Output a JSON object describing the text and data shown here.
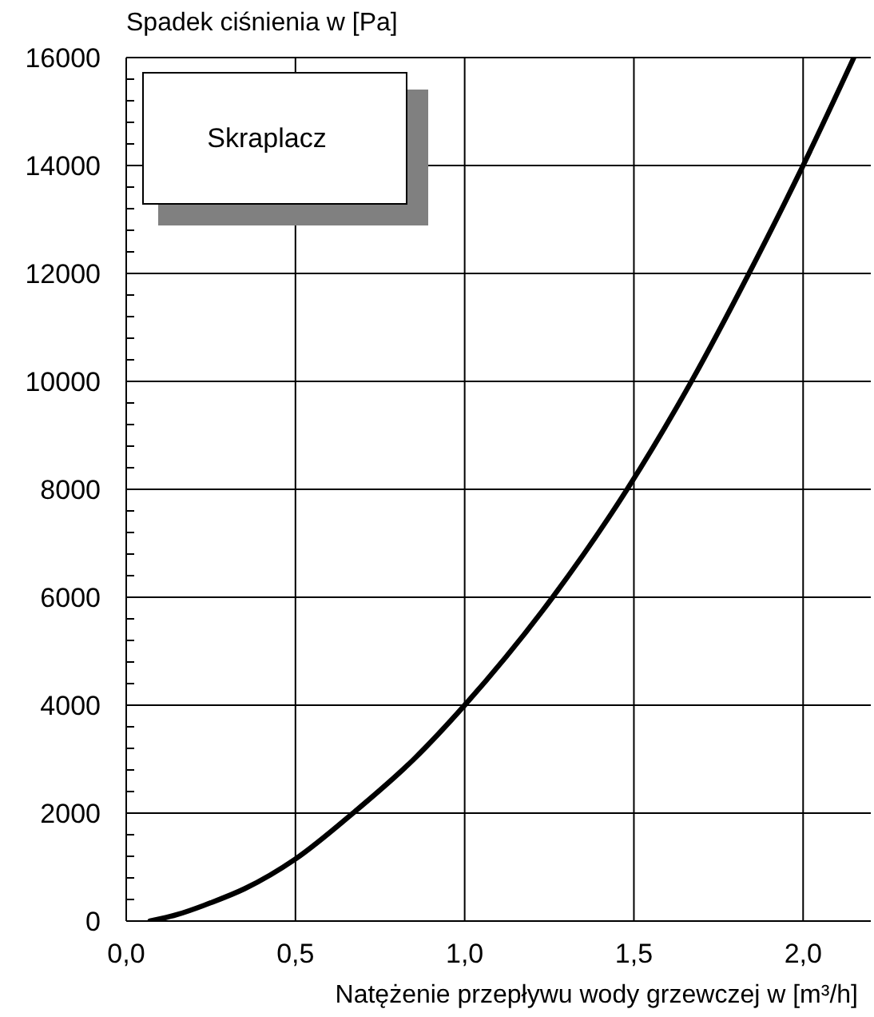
{
  "chart_data": {
    "type": "line",
    "ylabel": "Spadek ciśnienia w [Pa]",
    "xlabel": "Natężenie przepływu wody grzewczej w [m³/h]",
    "annotations": [
      "Skraplacz"
    ],
    "series": [
      {
        "color": "#000000",
        "x": [
          0.07,
          0.15,
          0.25,
          0.35,
          0.5,
          0.67,
          0.85,
          1.0,
          1.26,
          1.48,
          1.67,
          1.84,
          2.0,
          2.15
        ],
        "values": [
          0,
          120,
          340,
          600,
          1150,
          2000,
          3000,
          4000,
          6000,
          8000,
          10000,
          12000,
          14000,
          16000
        ]
      }
    ],
    "xlim": [
      0,
      2.2
    ],
    "xticks": [
      {
        "value": 0,
        "label": "0,0"
      },
      {
        "value": 0.5,
        "label": "0,5"
      },
      {
        "value": 1,
        "label": "1,0"
      },
      {
        "value": 1.5,
        "label": "1,5"
      },
      {
        "value": 2,
        "label": "2,0"
      }
    ],
    "ylim": [
      0,
      16000
    ],
    "yticks": [
      0,
      {
        "value": 400,
        "label": null
      },
      {
        "value": 800,
        "label": null
      },
      {
        "value": 1200,
        "label": null
      },
      {
        "value": 1600,
        "label": null
      },
      2000,
      {
        "value": 2400,
        "label": null
      },
      {
        "value": 2800,
        "label": null
      },
      {
        "value": 3200,
        "label": null
      },
      {
        "value": 3600,
        "label": null
      },
      4000,
      {
        "value": 4400,
        "label": null
      },
      {
        "value": 4800,
        "label": null
      },
      {
        "value": 5200,
        "label": null
      },
      {
        "value": 5600,
        "label": null
      },
      6000,
      {
        "value": 6400,
        "label": null
      },
      {
        "value": 6800,
        "label": null
      },
      {
        "value": 7200,
        "label": null
      },
      {
        "value": 7600,
        "label": null
      },
      8000,
      {
        "value": 8400,
        "label": null
      },
      {
        "value": 8800,
        "label": null
      },
      {
        "value": 9200,
        "label": null
      },
      {
        "value": 9600,
        "label": null
      },
      10000,
      {
        "value": 10400,
        "label": null
      },
      {
        "value": 10800,
        "label": null
      },
      {
        "value": 11200,
        "label": null
      },
      {
        "value": 11600,
        "label": null
      },
      12000,
      {
        "value": 12400,
        "label": null
      },
      {
        "value": 12800,
        "label": null
      },
      {
        "value": 13200,
        "label": null
      },
      {
        "value": 13600,
        "label": null
      },
      14000,
      {
        "value": 14400,
        "label": null
      },
      {
        "value": 14800,
        "label": null
      },
      {
        "value": 15200,
        "label": null
      },
      {
        "value": 15600,
        "label": null
      },
      16000
    ],
    "grid": true,
    "marker": "none"
  }
}
